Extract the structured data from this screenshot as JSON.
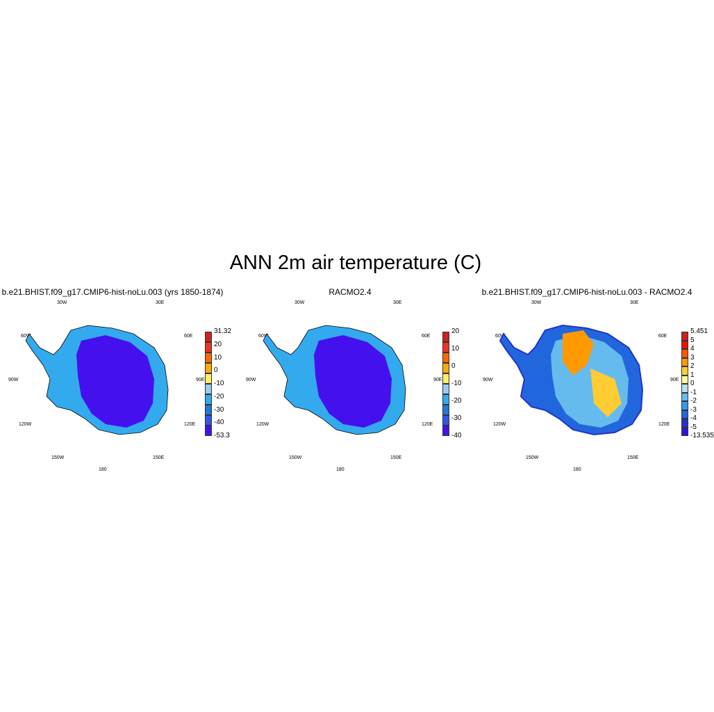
{
  "title": "ANN 2m air temperature (C)",
  "panels": [
    {
      "title": "b.e21.BHIST.f09_g17.CMIP6-hist-noLu.003 (yrs 1850-1874)",
      "lon_labels": [
        "30W",
        "30E",
        "60W",
        "60E",
        "90W",
        "90E",
        "120W",
        "120E",
        "150W",
        "150E",
        "180"
      ],
      "colorbar": {
        "colors": [
          "#cc2222",
          "#ee3322",
          "#ff6600",
          "#ffaa00",
          "#ffee66",
          "#99ccee",
          "#33aaee",
          "#2277dd",
          "#3355ee",
          "#4411ee"
        ],
        "labels": [
          "31.32",
          "20",
          "10",
          "0",
          "-10",
          "-20",
          "-30",
          "-40",
          "-53.3"
        ]
      }
    },
    {
      "title": "RACMO2.4",
      "lon_labels": [
        "30W",
        "30E",
        "60W",
        "60E",
        "90W",
        "90E",
        "120W",
        "120E",
        "150W",
        "150E",
        "180"
      ],
      "colorbar": {
        "colors": [
          "#cc2222",
          "#ee3322",
          "#ff6600",
          "#ffaa00",
          "#ffee66",
          "#99ccee",
          "#33aaee",
          "#2277dd",
          "#3355ee",
          "#4411ee"
        ],
        "labels": [
          "20",
          "10",
          "0",
          "-10",
          "-20",
          "-30",
          "-40"
        ]
      }
    },
    {
      "title": "b.e21.BHIST.f09_g17.CMIP6-hist-noLu.003 - RACMO2.4",
      "lon_labels": [
        "30W",
        "30E",
        "60W",
        "60E",
        "90W",
        "90E",
        "120W",
        "120E",
        "150W",
        "150E",
        "180"
      ],
      "colorbar": {
        "colors": [
          "#cc2222",
          "#ee1100",
          "#ff5500",
          "#ff9900",
          "#ffcc33",
          "#ffff99",
          "#bbddee",
          "#66bbee",
          "#3399ee",
          "#2266dd",
          "#2233cc",
          "#3311dd"
        ],
        "labels": [
          "5.451",
          "5",
          "4",
          "3",
          "2",
          "1",
          "0",
          "-1",
          "-2",
          "-3",
          "-4",
          "-5",
          "-13.535"
        ]
      }
    }
  ]
}
